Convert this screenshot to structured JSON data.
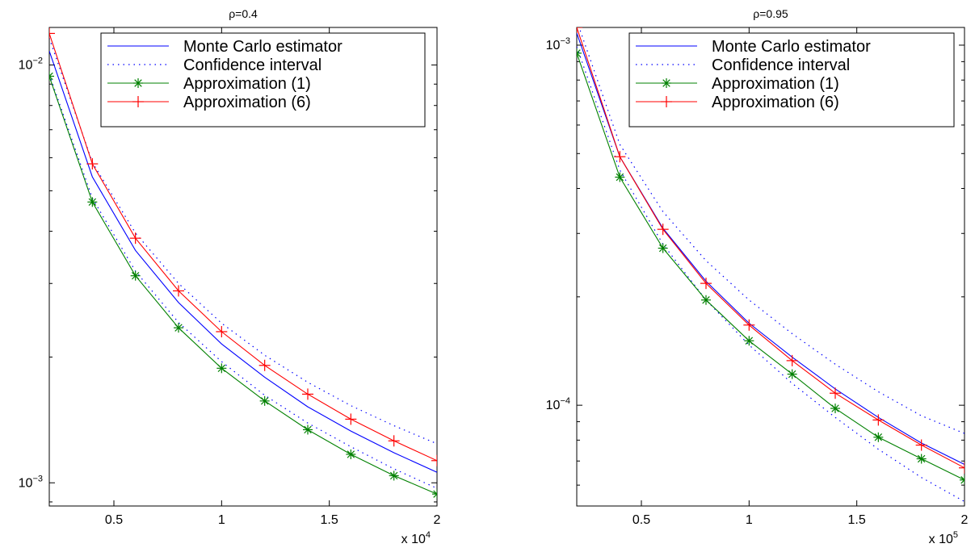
{
  "chart_data": [
    {
      "type": "line",
      "title": "ρ=0.4",
      "xlabel": "",
      "ylabel": "",
      "x_multiplier_label": {
        "prefix": "x 10",
        "exponent": "4"
      },
      "xlim": [
        2000,
        20000
      ],
      "ylim": [
        0.00088,
        0.0123
      ],
      "yscale": "log",
      "x_ticks": [
        5000,
        10000,
        15000,
        20000
      ],
      "x_tick_labels": [
        "0.5",
        "1",
        "1.5",
        "2"
      ],
      "y_ticks": [
        0.001,
        0.01
      ],
      "y_tick_labels": [
        {
          "base": "10",
          "exp": "−3"
        },
        {
          "base": "10",
          "exp": "−2"
        }
      ],
      "legend_position": "top-right",
      "x": [
        2000,
        4000,
        6000,
        8000,
        10000,
        12000,
        14000,
        16000,
        18000,
        20000
      ],
      "series": [
        {
          "name": "Monte Carlo estimator",
          "color": "#0000ff",
          "style": "solid",
          "marker": "none",
          "values": [
            0.0108,
            0.0054,
            0.0036,
            0.0027,
            0.00215,
            0.00179,
            0.00152,
            0.00133,
            0.00118,
            0.00106
          ]
        },
        {
          "name": "Confidence interval",
          "color": "#0000ff",
          "style": "dotted",
          "marker": "none",
          "values": [
            0.0116,
            0.00585,
            0.00396,
            0.003,
            0.00241,
            0.00202,
            0.00174,
            0.00153,
            0.00137,
            0.00124
          ]
        },
        {
          "name": "",
          "color": "#0000ff",
          "style": "dotted",
          "marker": "none",
          "values": [
            0.0095,
            0.0048,
            0.00321,
            0.00242,
            0.00195,
            0.00162,
            0.00139,
            0.00122,
            0.00108,
            0.00097
          ]
        },
        {
          "name": "Approximation (1)",
          "color": "#008000",
          "style": "solid",
          "marker": "star",
          "values": [
            0.0094,
            0.0047,
            0.00313,
            0.00235,
            0.00188,
            0.00157,
            0.00134,
            0.00117,
            0.00104,
            0.00094
          ]
        },
        {
          "name": "Approximation (6)",
          "color": "#ff0000",
          "style": "solid",
          "marker": "plus",
          "values": [
            0.0119,
            0.0058,
            0.00385,
            0.00288,
            0.0023,
            0.00191,
            0.00163,
            0.00142,
            0.00126,
            0.00113
          ]
        }
      ]
    },
    {
      "type": "line",
      "title": "ρ=0.95",
      "xlabel": "",
      "ylabel": "",
      "x_multiplier_label": {
        "prefix": "x 10",
        "exponent": "5"
      },
      "xlim": [
        20000,
        200000
      ],
      "ylim": [
        5.25e-05,
        0.00112
      ],
      "yscale": "log",
      "x_ticks": [
        50000,
        100000,
        150000,
        200000
      ],
      "x_tick_labels": [
        "0.5",
        "1",
        "1.5",
        "2"
      ],
      "y_ticks": [
        0.0001,
        0.001
      ],
      "y_tick_labels": [
        {
          "base": "10",
          "exp": "−4"
        },
        {
          "base": "10",
          "exp": "−3"
        }
      ],
      "legend_position": "top-right",
      "x": [
        20000,
        40000,
        60000,
        80000,
        100000,
        120000,
        140000,
        160000,
        180000,
        200000
      ],
      "series": [
        {
          "name": "Monte Carlo estimator",
          "color": "#0000ff",
          "style": "solid",
          "marker": "none",
          "values": [
            0.00108,
            0.00049,
            0.00031,
            0.000221,
            0.000169,
            0.000136,
            0.000111,
            9.25e-05,
            7.85e-05,
            6.85e-05
          ]
        },
        {
          "name": "Confidence interval",
          "color": "#0000ff",
          "style": "dotted",
          "marker": "none",
          "values": [
            0.00117,
            0.00053,
            0.000345,
            0.000252,
            0.000196,
            0.000158,
            0.00013,
            0.000109,
            9.35e-05,
            8.35e-05
          ]
        },
        {
          "name": "",
          "color": "#0000ff",
          "style": "dotted",
          "marker": "none",
          "values": [
            0.00099,
            0.00045,
            0.00028,
            0.000196,
            0.000147,
            0.000115,
            9.25e-05,
            7.55e-05,
            6.3e-05,
            5.4e-05
          ]
        },
        {
          "name": "Approximation (1)",
          "color": "#008000",
          "style": "solid",
          "marker": "star",
          "values": [
            0.00095,
            0.00043,
            0.000273,
            0.000196,
            0.000151,
            0.000122,
            9.8e-05,
            8.15e-05,
            7.1e-05,
            6.2e-05
          ]
        },
        {
          "name": "Approximation (6)",
          "color": "#ff0000",
          "style": "solid",
          "marker": "plus",
          "values": [
            0.00112,
            0.00049,
            0.000308,
            0.000218,
            0.000167,
            0.000133,
            0.000108,
            9.1e-05,
            7.75e-05,
            6.7e-05
          ]
        }
      ]
    }
  ]
}
